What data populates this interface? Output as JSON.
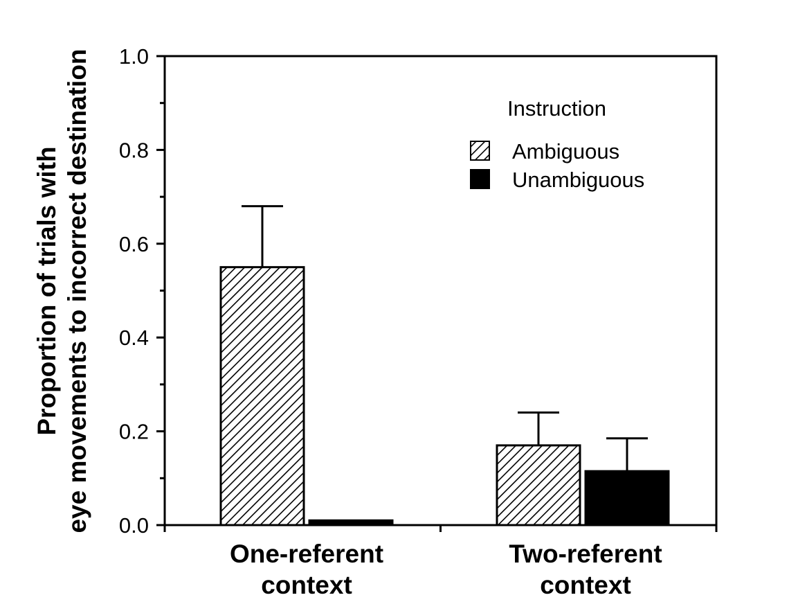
{
  "chart_data": {
    "type": "bar",
    "title": "",
    "xlabel": "",
    "ylabel_lines": [
      "Proportion of trials with",
      "eye movements to incorrect destination"
    ],
    "categories": [
      [
        "One-referent",
        "context"
      ],
      [
        "Two-referent",
        "context"
      ]
    ],
    "ylim": [
      0,
      1.0
    ],
    "yticks": [
      "0.0",
      "0.2",
      "0.4",
      "0.6",
      "0.8",
      "1.0"
    ],
    "legend_title": "Instruction",
    "legend_position": "top-right",
    "grid": false,
    "series": [
      {
        "name": "Ambiguous",
        "pattern": "hatched",
        "values": [
          0.55,
          0.17
        ],
        "errors": [
          0.13,
          0.07
        ]
      },
      {
        "name": "Unambiguous",
        "pattern": "solid",
        "values": [
          0.01,
          0.115
        ],
        "errors": [
          0.0,
          0.07
        ]
      }
    ]
  }
}
